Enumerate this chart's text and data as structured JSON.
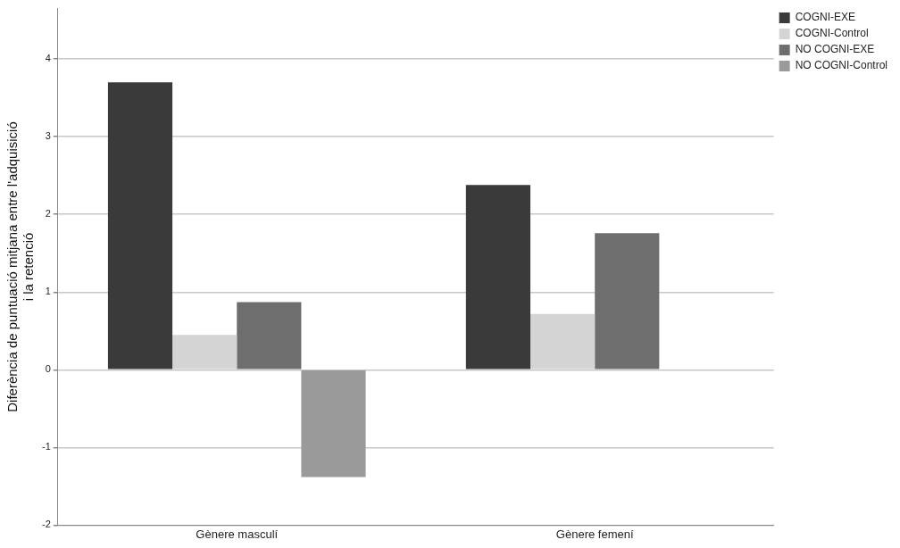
{
  "chart_data": {
    "type": "bar",
    "ylabel": "Diferència de puntuació mitjana entre l'adquisició i la retenció",
    "categories": [
      "Gènere masculí",
      "Gènere femení"
    ],
    "series": [
      {
        "name": "COGNI-EXE",
        "color": "#3a3a3a",
        "values": [
          3.7,
          2.38
        ]
      },
      {
        "name": "COGNI-Control",
        "color": "#d4d4d4",
        "values": [
          0.45,
          0.72
        ]
      },
      {
        "name": "NO COGNI-EXE",
        "color": "#6e6e6e",
        "values": [
          0.87,
          1.76
        ]
      },
      {
        "name": "NO COGNI-Control",
        "color": "#9a9a9a",
        "values": [
          -1.38,
          null
        ]
      }
    ],
    "ylim": [
      -2,
      4.65
    ],
    "yticks": [
      -2,
      -1,
      0,
      1,
      2,
      3,
      4
    ],
    "grid": "y",
    "legend": "top right"
  }
}
